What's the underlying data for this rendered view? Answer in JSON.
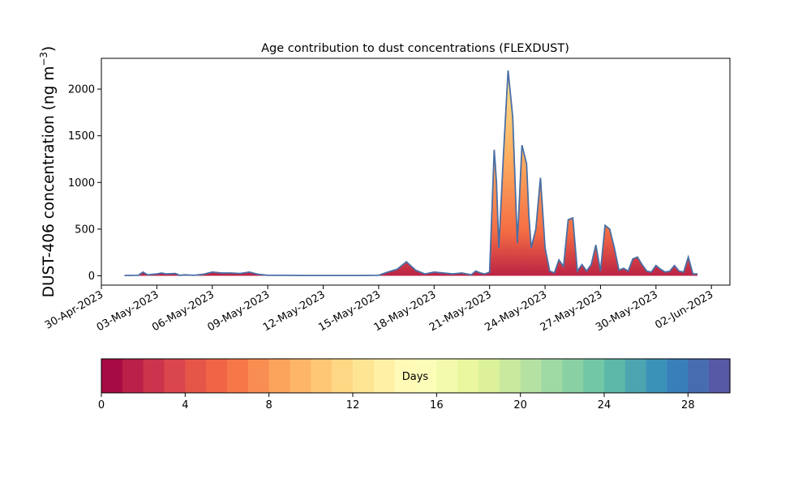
{
  "chart_data": {
    "type": "area",
    "title": "Age contribution to dust concentrations (FLEXDUST)",
    "ylabel": "DUST-406 concentration (ng m",
    "ylabel_sup": "−3",
    "ylabel_close": ")",
    "xlabel": "",
    "x_ticks": [
      "30-Apr-2023",
      "03-May-2023",
      "06-May-2023",
      "09-May-2023",
      "12-May-2023",
      "15-May-2023",
      "18-May-2023",
      "21-May-2023",
      "24-May-2023",
      "27-May-2023",
      "30-May-2023",
      "02-Jun-2023"
    ],
    "xlim": [
      "2023-04-30",
      "2023-06-03"
    ],
    "ylim": [
      -100,
      2330
    ],
    "y_ticks": [
      0,
      500,
      1000,
      1500,
      2000
    ],
    "series_line_color": "#4a6fa5",
    "total": {
      "x": [
        "2023-05-01T06:00",
        "2023-05-02T00:00",
        "2023-05-02T06:00",
        "2023-05-02T12:00",
        "2023-05-03T00:00",
        "2023-05-03T06:00",
        "2023-05-03T12:00",
        "2023-05-04T00:00",
        "2023-05-04T06:00",
        "2023-05-04T12:00",
        "2023-05-05T00:00",
        "2023-05-05T12:00",
        "2023-05-06T00:00",
        "2023-05-06T12:00",
        "2023-05-07T00:00",
        "2023-05-07T12:00",
        "2023-05-08T00:00",
        "2023-05-08T12:00",
        "2023-05-09T00:00",
        "2023-05-10T00:00",
        "2023-05-11T00:00",
        "2023-05-12T00:00",
        "2023-05-13T00:00",
        "2023-05-14T00:00",
        "2023-05-15T00:00",
        "2023-05-15T12:00",
        "2023-05-16T00:00",
        "2023-05-16T12:00",
        "2023-05-17T00:00",
        "2023-05-17T12:00",
        "2023-05-18T00:00",
        "2023-05-18T12:00",
        "2023-05-19T00:00",
        "2023-05-19T12:00",
        "2023-05-20T00:00",
        "2023-05-20T06:00",
        "2023-05-20T12:00",
        "2023-05-20T18:00",
        "2023-05-21T00:00",
        "2023-05-21T06:00",
        "2023-05-21T09:00",
        "2023-05-21T12:00",
        "2023-05-21T18:00",
        "2023-05-22T00:00",
        "2023-05-22T06:00",
        "2023-05-22T12:00",
        "2023-05-22T18:00",
        "2023-05-23T00:00",
        "2023-05-23T03:00",
        "2023-05-23T06:00",
        "2023-05-23T12:00",
        "2023-05-23T18:00",
        "2023-05-24T00:00",
        "2023-05-24T06:00",
        "2023-05-24T12:00",
        "2023-05-24T18:00",
        "2023-05-25T00:00",
        "2023-05-25T06:00",
        "2023-05-25T12:00",
        "2023-05-25T18:00",
        "2023-05-26T00:00",
        "2023-05-26T06:00",
        "2023-05-26T12:00",
        "2023-05-26T18:00",
        "2023-05-27T00:00",
        "2023-05-27T06:00",
        "2023-05-27T12:00",
        "2023-05-27T18:00",
        "2023-05-28T00:00",
        "2023-05-28T06:00",
        "2023-05-28T12:00",
        "2023-05-28T18:00",
        "2023-05-29T00:00",
        "2023-05-29T06:00",
        "2023-05-29T12:00",
        "2023-05-29T18:00",
        "2023-05-30T00:00",
        "2023-05-30T06:00",
        "2023-05-30T12:00",
        "2023-05-30T18:00",
        "2023-05-31T00:00",
        "2023-05-31T06:00",
        "2023-05-31T12:00",
        "2023-05-31T18:00",
        "2023-06-01T00:00",
        "2023-06-01T06:00"
      ],
      "y": [
        3,
        5,
        40,
        10,
        20,
        30,
        20,
        25,
        5,
        10,
        5,
        15,
        40,
        30,
        30,
        25,
        40,
        15,
        5,
        5,
        3,
        3,
        3,
        3,
        5,
        40,
        70,
        150,
        60,
        20,
        40,
        30,
        20,
        30,
        10,
        50,
        30,
        20,
        40,
        1350,
        1000,
        300,
        1300,
        2200,
        1700,
        350,
        1400,
        1200,
        650,
        300,
        500,
        1050,
        300,
        50,
        30,
        170,
        100,
        600,
        620,
        50,
        120,
        50,
        120,
        330,
        50,
        540,
        500,
        300,
        60,
        80,
        50,
        180,
        200,
        120,
        50,
        40,
        110,
        70,
        40,
        50,
        110,
        50,
        40,
        200,
        20,
        20
      ]
    },
    "colorbar": {
      "label": "Days",
      "min": 0,
      "max": 30,
      "bins": 30,
      "ticks": [
        0,
        4,
        8,
        12,
        16,
        20,
        24,
        28
      ],
      "colormap": "Spectral"
    }
  }
}
